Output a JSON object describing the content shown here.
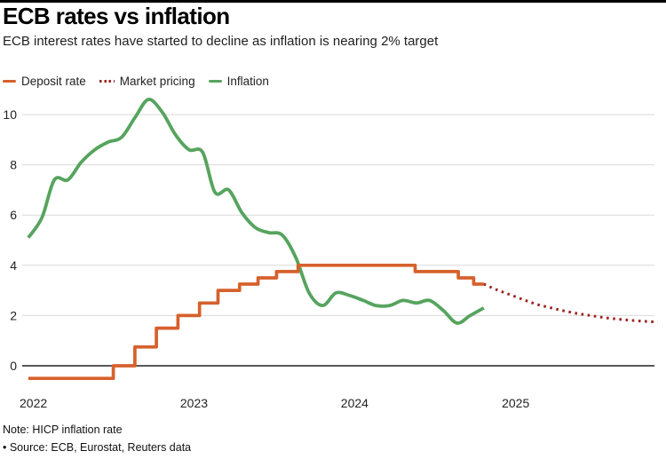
{
  "header": {
    "title": "ECB rates vs inflation",
    "subtitle": "ECB interest rates have started to decline as inflation is nearing 2% target"
  },
  "legend": {
    "items": [
      {
        "label": "Deposit rate",
        "color": "#d6612c",
        "style": "solid"
      },
      {
        "label": "Market pricing",
        "color": "#9f221f",
        "style": "dotted"
      },
      {
        "label": "Inflation",
        "color": "#56a45e",
        "style": "solid"
      }
    ]
  },
  "footer": {
    "note": "Note: HICP inflation rate",
    "source": "• Source: ECB, Eurostat, Reuters data"
  },
  "chart_data": {
    "type": "line",
    "title": "ECB rates vs inflation",
    "subtitle": "ECB interest rates have started to decline as inflation is nearing 2% target",
    "xlabel": "",
    "ylabel": "",
    "grid": true,
    "legend_position": "top-left",
    "ylim": [
      -0.9,
      10.9
    ],
    "yticks": [
      0,
      2,
      4,
      6,
      8,
      10
    ],
    "xticks": [
      "2022",
      "2023",
      "2024",
      "2025"
    ],
    "xlim": [
      "2022-01-01",
      "2026-01-01"
    ],
    "series": [
      {
        "name": "Deposit rate",
        "type": "step",
        "color": "#d6612c",
        "width": 3.7,
        "end": "2024-11-15",
        "points": [
          [
            "2022-01-15",
            -0.5
          ],
          [
            "2022-07-27",
            0.0
          ],
          [
            "2022-09-14",
            0.75
          ],
          [
            "2022-11-02",
            1.5
          ],
          [
            "2022-12-21",
            2.0
          ],
          [
            "2023-02-08",
            2.5
          ],
          [
            "2023-03-22",
            3.0
          ],
          [
            "2023-05-10",
            3.25
          ],
          [
            "2023-06-21",
            3.5
          ],
          [
            "2023-08-02",
            3.75
          ],
          [
            "2023-09-20",
            4.0
          ],
          [
            "2024-06-12",
            3.75
          ],
          [
            "2024-09-18",
            3.5
          ],
          [
            "2024-10-23",
            3.25
          ]
        ]
      },
      {
        "name": "Market pricing",
        "type": "dotted-line",
        "color": "#9f221f",
        "width": 3,
        "points": [
          [
            "2024-11-15",
            3.25
          ],
          [
            "2024-12-15",
            3.02
          ],
          [
            "2025-01-15",
            2.82
          ],
          [
            "2025-02-15",
            2.62
          ],
          [
            "2025-03-15",
            2.45
          ],
          [
            "2025-04-15",
            2.31
          ],
          [
            "2025-05-15",
            2.19
          ],
          [
            "2025-06-15",
            2.08
          ],
          [
            "2025-07-15",
            2.0
          ],
          [
            "2025-08-15",
            1.92
          ],
          [
            "2025-09-15",
            1.86
          ],
          [
            "2025-10-15",
            1.81
          ],
          [
            "2025-11-15",
            1.77
          ],
          [
            "2025-12-15",
            1.74
          ]
        ]
      },
      {
        "name": "Inflation",
        "type": "smooth-line",
        "color": "#56a45e",
        "width": 3.8,
        "points": [
          [
            "2022-01-15",
            5.1
          ],
          [
            "2022-02-15",
            5.9
          ],
          [
            "2022-03-15",
            7.4
          ],
          [
            "2022-04-15",
            7.4
          ],
          [
            "2022-05-15",
            8.1
          ],
          [
            "2022-06-15",
            8.6
          ],
          [
            "2022-07-15",
            8.9
          ],
          [
            "2022-08-15",
            9.1
          ],
          [
            "2022-09-15",
            9.9
          ],
          [
            "2022-10-15",
            10.6
          ],
          [
            "2022-11-15",
            10.1
          ],
          [
            "2022-12-15",
            9.2
          ],
          [
            "2023-01-15",
            8.6
          ],
          [
            "2023-02-15",
            8.5
          ],
          [
            "2023-03-15",
            6.9
          ],
          [
            "2023-04-15",
            7.0
          ],
          [
            "2023-05-15",
            6.1
          ],
          [
            "2023-06-15",
            5.5
          ],
          [
            "2023-07-15",
            5.3
          ],
          [
            "2023-08-15",
            5.2
          ],
          [
            "2023-09-15",
            4.3
          ],
          [
            "2023-10-15",
            2.9
          ],
          [
            "2023-11-15",
            2.4
          ],
          [
            "2023-12-15",
            2.9
          ],
          [
            "2024-01-15",
            2.8
          ],
          [
            "2024-02-15",
            2.6
          ],
          [
            "2024-03-15",
            2.4
          ],
          [
            "2024-04-15",
            2.4
          ],
          [
            "2024-05-15",
            2.6
          ],
          [
            "2024-06-15",
            2.5
          ],
          [
            "2024-07-15",
            2.6
          ],
          [
            "2024-08-15",
            2.2
          ],
          [
            "2024-09-15",
            1.7
          ],
          [
            "2024-10-15",
            2.0
          ],
          [
            "2024-11-15",
            2.3
          ]
        ]
      }
    ]
  }
}
